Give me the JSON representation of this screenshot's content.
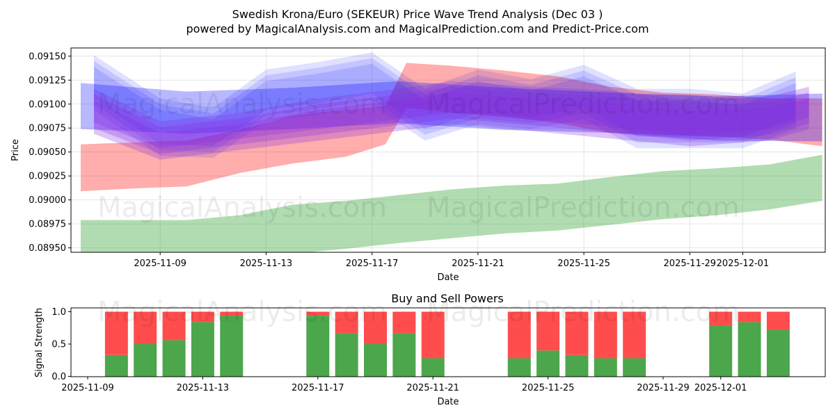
{
  "titles": {
    "main": "Swedish Krona/Euro (SEKEUR) Price Wave Trend Analysis (Dec 03 )",
    "sub": "powered by MagicalAnalysis.com and MagicalPrediction.com and Predict-Price.com"
  },
  "watermarks": {
    "top_left": "MagicalAnalysis.com",
    "top_right": "MagicalPrediction.com",
    "bottom_left": "MagicalAnalysis.com",
    "bottom_right": "MagicalPrediction.com"
  },
  "chart_data": [
    {
      "type": "area",
      "title": "",
      "xlabel": "Date",
      "ylabel": "Price",
      "grid": true,
      "x_start": "2025-11-06",
      "x_end": "2025-12-03",
      "xlim": [
        -0.2,
        27.8
      ],
      "ylim": [
        0.08945,
        0.0916
      ],
      "x_ticks": [
        {
          "label": "2025-11-09",
          "day": 3
        },
        {
          "label": "2025-11-13",
          "day": 7
        },
        {
          "label": "2025-11-17",
          "day": 11
        },
        {
          "label": "2025-11-21",
          "day": 15
        },
        {
          "label": "2025-11-25",
          "day": 19
        },
        {
          "label": "2025-11-29",
          "day": 23
        },
        {
          "label": "2025-12-01",
          "day": 25
        }
      ],
      "y_ticks": [
        "0.09150",
        "0.09125",
        "0.09100",
        "0.09075",
        "0.09050",
        "0.09025",
        "0.09000",
        "0.08975",
        "0.08950"
      ],
      "series": [
        {
          "name": "green band",
          "color": "#2ca02c",
          "opacity": 0.37,
          "x": [
            0,
            2,
            4,
            6,
            8,
            10,
            12,
            14,
            16,
            18,
            20,
            22,
            24,
            26,
            28
          ],
          "upper": [
            0.08979,
            0.08979,
            0.08979,
            0.08984,
            0.08995,
            0.08999,
            0.09005,
            0.09011,
            0.09015,
            0.09017,
            0.09024,
            0.0903,
            0.09033,
            0.09037,
            0.09047
          ],
          "lower": [
            0.08939,
            0.08938,
            0.08937,
            0.0894,
            0.08944,
            0.08949,
            0.08955,
            0.0896,
            0.08965,
            0.08968,
            0.08974,
            0.0898,
            0.08984,
            0.0899,
            0.08999
          ]
        },
        {
          "name": "red band",
          "color": "#ff0000",
          "opacity": 0.32,
          "x": [
            0,
            2,
            4,
            6,
            8,
            10,
            11.5,
            12.3,
            14,
            16,
            18,
            20,
            22,
            24,
            26,
            28
          ],
          "upper": [
            0.09058,
            0.0906,
            0.09062,
            0.09073,
            0.09088,
            0.09094,
            0.09098,
            0.09143,
            0.0914,
            0.09135,
            0.09129,
            0.09118,
            0.09112,
            0.0911,
            0.09106,
            0.09106
          ],
          "lower": [
            0.09009,
            0.09012,
            0.09014,
            0.09028,
            0.09038,
            0.09045,
            0.09058,
            0.09096,
            0.09091,
            0.09087,
            0.0908,
            0.0907,
            0.09068,
            0.09066,
            0.09063,
            0.09056
          ]
        },
        {
          "name": "blue band 1",
          "color": "#0000ff",
          "opacity": 0.28,
          "x": [
            0,
            4,
            8,
            12,
            16,
            20,
            24,
            28
          ],
          "upper": [
            0.09122,
            0.09113,
            0.09117,
            0.09124,
            0.09117,
            0.09112,
            0.09108,
            0.09111
          ],
          "lower": [
            0.09074,
            0.09069,
            0.09074,
            0.0908,
            0.09073,
            0.0907,
            0.09062,
            0.09061
          ]
        },
        {
          "name": "blue band 2",
          "color": "#0000ff",
          "opacity": 0.12,
          "x": [
            0.5,
            3,
            5,
            7,
            9,
            11,
            13,
            15,
            17,
            19,
            21,
            23,
            25,
            27
          ],
          "upper": [
            0.09145,
            0.091,
            0.0909,
            0.0913,
            0.09138,
            0.09148,
            0.0911,
            0.0913,
            0.0912,
            0.09135,
            0.0911,
            0.0911,
            0.09105,
            0.09128
          ],
          "lower": [
            0.091,
            0.09052,
            0.0905,
            0.09088,
            0.09095,
            0.09105,
            0.09068,
            0.09085,
            0.0908,
            0.0909,
            0.0906,
            0.0906,
            0.0906,
            0.0908
          ]
        },
        {
          "name": "purple band",
          "color": "#8a2be2",
          "opacity": 0.28,
          "x": [
            0.5,
            3,
            6,
            9,
            12,
            14,
            17,
            20,
            23,
            26,
            27.5
          ],
          "upper": [
            0.0911,
            0.09076,
            0.09085,
            0.091,
            0.0911,
            0.09118,
            0.09112,
            0.09108,
            0.09098,
            0.09102,
            0.09112
          ],
          "lower": [
            0.09075,
            0.09048,
            0.09058,
            0.09068,
            0.09078,
            0.09085,
            0.09078,
            0.0907,
            0.09062,
            0.09068,
            0.0908
          ]
        }
      ]
    },
    {
      "type": "bar",
      "title": "Buy and Sell Powers",
      "xlabel": "Date",
      "ylabel": "Signal Strength",
      "ylim": [
        0,
        1.05
      ],
      "y_ticks": [
        "0.0",
        "0.5",
        "1.0"
      ],
      "x_ticks": [
        {
          "label": "2025-11-09",
          "day": 0
        },
        {
          "label": "2025-11-13",
          "day": 4
        },
        {
          "label": "2025-11-17",
          "day": 8
        },
        {
          "label": "2025-11-21",
          "day": 12
        },
        {
          "label": "2025-11-25",
          "day": 16
        },
        {
          "label": "2025-11-29",
          "day": 20
        },
        {
          "label": "2025-12-01",
          "day": 22
        }
      ],
      "buy_color": "#4ca64c",
      "sell_color": "#ff4d4d",
      "bars": [
        {
          "day": 1,
          "date": "2025-11-10",
          "buy": 0.33
        },
        {
          "day": 2,
          "date": "2025-11-11",
          "buy": 0.5
        },
        {
          "day": 3,
          "date": "2025-11-12",
          "buy": 0.56
        },
        {
          "day": 4,
          "date": "2025-11-13",
          "buy": 0.84
        },
        {
          "day": 5,
          "date": "2025-11-14",
          "buy": 0.94
        },
        {
          "day": 8,
          "date": "2025-11-17",
          "buy": 0.94
        },
        {
          "day": 9,
          "date": "2025-11-18",
          "buy": 0.67
        },
        {
          "day": 10,
          "date": "2025-11-19",
          "buy": 0.5
        },
        {
          "day": 11,
          "date": "2025-11-20",
          "buy": 0.67
        },
        {
          "day": 12,
          "date": "2025-11-21",
          "buy": 0.28
        },
        {
          "day": 15,
          "date": "2025-11-24",
          "buy": 0.28
        },
        {
          "day": 16,
          "date": "2025-11-25",
          "buy": 0.4
        },
        {
          "day": 17,
          "date": "2025-11-26",
          "buy": 0.33
        },
        {
          "day": 18,
          "date": "2025-11-27",
          "buy": 0.28
        },
        {
          "day": 19,
          "date": "2025-11-28",
          "buy": 0.28
        },
        {
          "day": 22,
          "date": "2025-12-01",
          "buy": 0.78
        },
        {
          "day": 23,
          "date": "2025-12-02",
          "buy": 0.84
        },
        {
          "day": 24,
          "date": "2025-12-03",
          "buy": 0.72
        }
      ]
    }
  ]
}
